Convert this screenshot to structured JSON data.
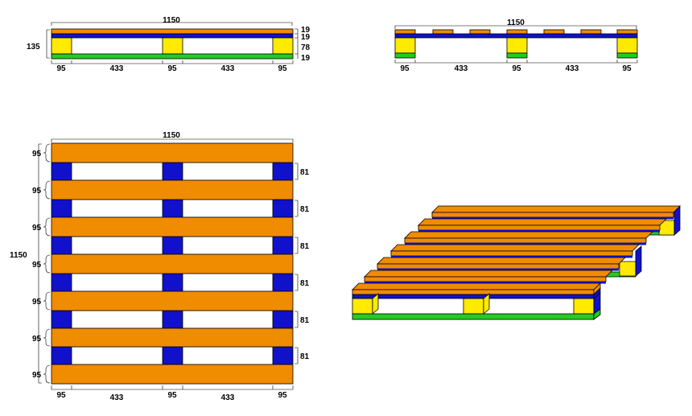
{
  "colors": {
    "top_board": "#f08c00",
    "stringer_board": "#1111cc",
    "block": "#ffea00",
    "bottom_board": "#22cc22",
    "outline": "#000000"
  },
  "side_view": {
    "width_label": "1150",
    "height_label": "135",
    "layer_labels": [
      "19",
      "19",
      "78",
      "19"
    ],
    "bottom_labels": [
      "95",
      "433",
      "95",
      "433",
      "95"
    ]
  },
  "end_view": {
    "width_label": "1150",
    "bottom_labels": [
      "95",
      "433",
      "95",
      "433",
      "95"
    ]
  },
  "plan_view": {
    "width_label": "1150",
    "height_label": "1150",
    "left_labels": [
      "95",
      "95",
      "95",
      "95",
      "95",
      "95",
      "95"
    ],
    "gap_labels": [
      "81",
      "81",
      "81",
      "81",
      "81",
      "81"
    ],
    "bottom_labels": [
      "95",
      "433",
      "95",
      "433",
      "95"
    ]
  },
  "isometric_view": {}
}
